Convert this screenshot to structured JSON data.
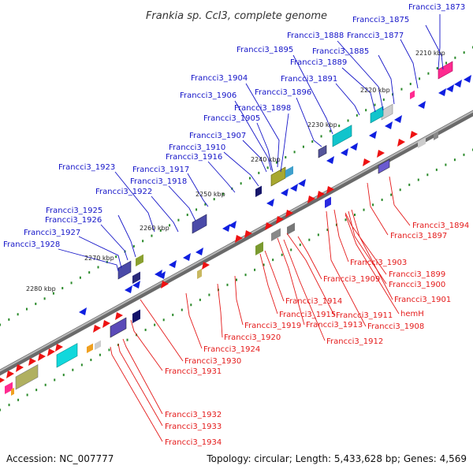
{
  "title": "Frankia sp. CcI3, complete genome",
  "accession": "Accession: NC_007777",
  "summary": "Topology: circular; Length: 5,433,628 bp; Genes: 4,569",
  "colors": {
    "upper_strand_label": "#1414c8",
    "lower_strand_label": "#e41a1a",
    "backbone": "#8a8a8a",
    "tick_dots": "#2a8a2a"
  },
  "scale_labels": [
    "2210 kbp",
    "2220 kbp",
    "2230 kbp",
    "2240 kbp",
    "2250 kbp",
    "2260 kbp",
    "2270 kbp",
    "2280 kbp"
  ],
  "upper_genes": [
    "Francci3_1873",
    "Francci3_1875",
    "Francci3_1877",
    "Francci3_1885",
    "Francci3_1888",
    "Francci3_1889",
    "Francci3_1891",
    "Francci3_1895",
    "Francci3_1896",
    "Francci3_1898",
    "Francci3_1904",
    "Francci3_1905",
    "Francci3_1906",
    "Francci3_1907",
    "Francci3_1910",
    "Francci3_1916",
    "Francci3_1917",
    "Francci3_1918",
    "Francci3_1922",
    "Francci3_1923",
    "Francci3_1925",
    "Francci3_1926",
    "Francci3_1927",
    "Francci3_1928"
  ],
  "lower_genes": [
    "Francci3_1894",
    "Francci3_1897",
    "Francci3_1903",
    "Francci3_1899",
    "Francci3_1900",
    "Francci3_1901",
    "Francci3_1909",
    "hemH",
    "Francci3_1908",
    "Francci3_1911",
    "Francci3_1913",
    "Francci3_1914",
    "Francci3_1915",
    "Francci3_1912",
    "Francci3_1919",
    "Francci3_1920",
    "Francci3_1924",
    "Francci3_1930",
    "Francci3_1931",
    "Francci3_1932",
    "Francci3_1933",
    "Francci3_1934"
  ]
}
